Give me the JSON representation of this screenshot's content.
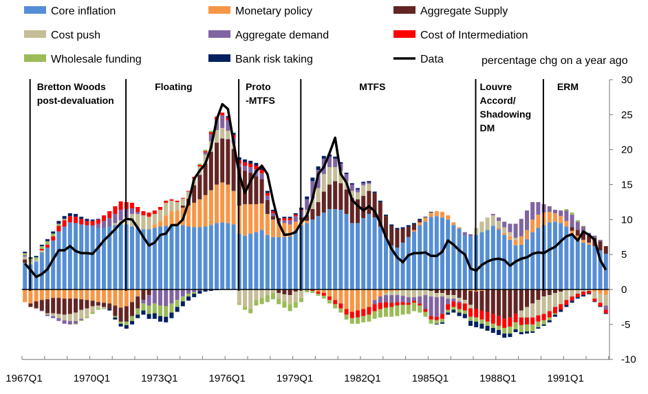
{
  "chart_data": {
    "type": "bar",
    "subtype": "stacked bar with line",
    "unit_note": "percentage chg on a year ago",
    "x_start": "1967Q1",
    "x_tick_labels": [
      "1967Q1",
      "1970Q1",
      "1973Q1",
      "1976Q1",
      "1979Q1",
      "1982Q1",
      "1985Q1",
      "1988Q1",
      "1991Q1"
    ],
    "ylim": [
      -10,
      30
    ],
    "y_ticks": [
      -10,
      -5,
      0,
      5,
      10,
      15,
      20,
      25,
      30
    ],
    "y_axis_side": "right",
    "legend_placement": "top",
    "regimes": [
      {
        "label_lines": [
          "Bretton Woods",
          "post-devaluation"
        ],
        "start": "1967Q2"
      },
      {
        "label_lines": [
          "Floating"
        ],
        "start": "1971Q3"
      },
      {
        "label_lines": [
          "Proto",
          "-MTFS"
        ],
        "start": "1976Q3"
      },
      {
        "label_lines": [
          "MTFS"
        ],
        "start": "1979Q2"
      },
      {
        "label_lines": [
          "Louvre",
          "Accord/",
          "Shadowing",
          "DM"
        ],
        "start": "1987Q1"
      },
      {
        "label_lines": [
          "ERM"
        ],
        "start": "1990Q1"
      }
    ],
    "series": [
      {
        "name": "Core inflation",
        "color": "#558ED5",
        "values": [
          3.8,
          3.6,
          4.0,
          5.3,
          6.0,
          7.0,
          8.3,
          9.0,
          9.6,
          9.5,
          9.3,
          9.2,
          9.0,
          8.8,
          8.8,
          9.0,
          9.2,
          9.4,
          9.3,
          9.0,
          8.8,
          8.6,
          8.6,
          8.8,
          9.0,
          9.1,
          9.2,
          9.1,
          9.2,
          9.0,
          8.9,
          8.9,
          9.0,
          9.2,
          9.5,
          9.6,
          9.5,
          9.3,
          8.0,
          7.7,
          8.0,
          8.2,
          8.5,
          7.8,
          7.5,
          7.5,
          7.5,
          7.6,
          8.5,
          9.2,
          9.5,
          10.0,
          10.5,
          11.0,
          11.5,
          11.5,
          11.4,
          10.8,
          9.5,
          9.5,
          10.2,
          10.8,
          10.3,
          9.0,
          7.5,
          6.3,
          6.0,
          6.7,
          7.5,
          8.3,
          9.2,
          9.7,
          10.4,
          10.5,
          10.3,
          10.0,
          9.2,
          8.7,
          7.7,
          7.6,
          7.8,
          8.2,
          8.5,
          9.1,
          8.6,
          7.8,
          7.1,
          6.3,
          6.4,
          7.2,
          8.2,
          8.8,
          9.2,
          9.6,
          9.7,
          9.5,
          9.0,
          7.8,
          7.2,
          6.7,
          6.4,
          6.2,
          5.6,
          5.1
        ]
      },
      {
        "name": "Monetary policy",
        "color": "#F79646",
        "values": [
          -1.8,
          -2.0,
          -1.7,
          -1.5,
          -1.4,
          -1.2,
          -1.2,
          -1.3,
          -1.3,
          -1.3,
          -1.4,
          -1.5,
          -1.6,
          -1.8,
          -1.9,
          -2.0,
          -2.3,
          -2.6,
          -2.4,
          -1.8,
          -1.0,
          0,
          0,
          0.5,
          0.8,
          1.5,
          2.0,
          2.2,
          2.5,
          3.0,
          3.5,
          4.0,
          4.5,
          5.0,
          5.5,
          5.7,
          5.5,
          4.8,
          4.0,
          4.5,
          4.2,
          4.0,
          3.8,
          3.0,
          2.5,
          2.0,
          2.0,
          1.7,
          1.2,
          0.8,
          0.3,
          0,
          -0.3,
          -0.5,
          -1.0,
          -1.5,
          -2.0,
          -2.8,
          -3.2,
          -3.0,
          -2.8,
          -2.5,
          -1.5,
          -1.0,
          -0.5,
          -0.3,
          -0.2,
          -0.1,
          -0.1,
          0.2,
          0.4,
          0.6,
          0.6,
          0.7,
          0.8,
          0.6,
          0.4,
          0.2,
          0,
          -0.2,
          -0.3,
          -0.2,
          0,
          0,
          0.2,
          0.3,
          0.5,
          0.8,
          1.2,
          1.3,
          1.8,
          1.9,
          1.8,
          1.5,
          1.2,
          1.0,
          0.8,
          0.6,
          0.5,
          0.4,
          0.3,
          -0.3,
          -0.6,
          -0.8
        ]
      },
      {
        "name": "Aggregate Supply",
        "color": "#632523",
        "values": [
          0.5,
          -0.5,
          -1.0,
          -1.5,
          -2.0,
          -2.2,
          -2.3,
          -2.3,
          -2.2,
          -2.0,
          -1.5,
          -1.2,
          -0.8,
          -0.5,
          -0.6,
          -0.8,
          -1.5,
          -2.0,
          -2.2,
          -2.0,
          -1.7,
          -1.5,
          -0.8,
          0,
          0,
          0,
          0,
          0,
          0.3,
          1.0,
          2.5,
          3.5,
          4.5,
          5.5,
          6.0,
          6.3,
          6.5,
          6.0,
          5.5,
          4.8,
          4.5,
          4.0,
          3.5,
          2.0,
          0.5,
          -0.5,
          -0.7,
          -0.8,
          -0.3,
          0.3,
          0.8,
          1.5,
          2.0,
          3.0,
          3.5,
          4.0,
          3.8,
          3.5,
          3.6,
          3.4,
          3.2,
          3.3,
          3.5,
          3.5,
          3.0,
          2.8,
          2.6,
          2.0,
          1.5,
          0.8,
          0.3,
          0,
          -0.2,
          -0.5,
          -0.5,
          -0.8,
          -0.8,
          -1.2,
          -1.5,
          -2.0,
          -2.5,
          -2.8,
          -3.2,
          -3.5,
          -3.8,
          -4.2,
          -4.0,
          -3.5,
          -3.0,
          -2.5,
          -2.0,
          -1.5,
          -1.0,
          -0.8,
          -0.5,
          -0.3,
          0,
          0.5,
          0.8,
          0.9,
          1.0,
          1.2,
          1.3,
          1.1
        ]
      },
      {
        "name": "Cost push",
        "color": "#C4BD97",
        "values": [
          0.4,
          0.4,
          0.3,
          0.3,
          -0.2,
          -0.4,
          -0.6,
          -0.8,
          -1.0,
          -1.2,
          -1.3,
          -1.2,
          -0.8,
          -0.4,
          -0.2,
          0,
          0.3,
          0.5,
          1.0,
          1.8,
          2.0,
          2.0,
          1.8,
          1.5,
          1.6,
          1.8,
          1.5,
          1.2,
          1.0,
          1.0,
          1.0,
          1.2,
          1.3,
          1.5,
          1.8,
          1.5,
          1.2,
          0.8,
          -2.0,
          -2.5,
          -2.8,
          -1.5,
          -1.2,
          -0.8,
          -0.5,
          -0.8,
          -1.0,
          -1.3,
          -1.5,
          -1.2,
          0.8,
          1.5,
          2.0,
          2.5,
          2.5,
          2.0,
          1.8,
          1.2,
          1.0,
          1.0,
          1.5,
          1.0,
          0,
          0,
          -0.3,
          -0.5,
          -0.6,
          -0.8,
          -1.0,
          -1.1,
          -1.0,
          -0.8,
          -0.8,
          -0.6,
          -0.5,
          -0.5,
          -0.5,
          -0.5,
          -0.5,
          -0.5,
          1.0,
          1.5,
          1.8,
          1.5,
          1.0,
          0.8,
          0.6,
          0.3,
          -1.0,
          -1.5,
          -2.0,
          -2.2,
          -2.5,
          -2.3,
          -2.0,
          -1.8,
          -1.5,
          -1.0,
          -0.6,
          -0.3,
          -0.2,
          -1.0,
          -1.3,
          -1.5
        ]
      },
      {
        "name": "Aggregate demand",
        "color": "#8064A2",
        "values": [
          0.2,
          0.1,
          0,
          -0.1,
          -0.2,
          -0.3,
          -0.4,
          -0.5,
          -0.5,
          -0.4,
          -0.2,
          0,
          0.2,
          0.6,
          1.0,
          1.2,
          1.3,
          1.5,
          1.2,
          0.8,
          0.3,
          -0.5,
          -1.5,
          -2.0,
          -2.3,
          -2.4,
          -2.0,
          -1.5,
          -1.0,
          -0.6,
          -0.4,
          -0.2,
          0.3,
          1.0,
          1.5,
          1.8,
          1.5,
          0.8,
          0.5,
          0.7,
          0.8,
          1.0,
          0.8,
          0.6,
          0.4,
          0.3,
          0.4,
          0.6,
          0.8,
          1.0,
          1.5,
          2.5,
          2.6,
          2.2,
          1.5,
          1.2,
          1.0,
          1.0,
          0.9,
          0.4,
          0.3,
          0.2,
          -0.6,
          -0.9,
          -1.0,
          -1.1,
          -1.0,
          -0.9,
          -0.8,
          -0.5,
          -1.0,
          -2.0,
          -2.8,
          -2.8,
          -2.5,
          -0.8,
          -0.4,
          -0.2,
          0.5,
          0.3,
          0,
          0,
          0,
          0.2,
          0.5,
          0.8,
          1.2,
          2.0,
          2.5,
          2.8,
          2.5,
          1.8,
          1.2,
          0.8,
          0.5,
          0.8,
          1.5,
          1.8,
          1.2,
          1.0,
          0.4,
          0.3,
          0.2,
          -0.6
        ]
      },
      {
        "name": "Cost of Intermediation",
        "color": "#FF0000",
        "values": [
          0,
          0,
          0,
          0.2,
          0.4,
          0.6,
          0.8,
          0.9,
          0.9,
          0.9,
          0.8,
          0.6,
          0.6,
          0.6,
          0.8,
          1.0,
          1.1,
          1.2,
          1.0,
          0.8,
          0.7,
          0.6,
          0.6,
          0.5,
          0.4,
          0.3,
          0.2,
          0.2,
          0.1,
          0.1,
          0.2,
          0.2,
          0.2,
          0.3,
          0.4,
          0.4,
          0.4,
          0.4,
          0.5,
          0.5,
          0.5,
          0.5,
          0.5,
          0.4,
          0.3,
          0.2,
          0.3,
          0.3,
          0.2,
          0.1,
          0,
          -0.2,
          -0.3,
          -0.4,
          -0.5,
          -0.6,
          -0.7,
          -0.8,
          -0.9,
          -1.0,
          -1.0,
          -1.1,
          -1.0,
          -0.9,
          -0.8,
          -0.6,
          -0.5,
          -0.4,
          -0.3,
          -0.3,
          -0.3,
          -0.4,
          -0.5,
          -0.5,
          -0.7,
          -0.8,
          -0.8,
          -0.9,
          -1.0,
          -1.2,
          -1.2,
          -1.3,
          -1.4,
          -1.4,
          -1.4,
          -1.3,
          -1.3,
          -1.2,
          -1.1,
          -1.0,
          -1.0,
          -0.9,
          -0.9,
          -0.9,
          -0.9,
          -0.8,
          -0.7,
          -0.6,
          -0.5,
          -0.5,
          -0.4,
          -0.4,
          -0.5,
          -0.5
        ]
      },
      {
        "name": "Wholesale funding",
        "color": "#9BBB59",
        "values": [
          0.3,
          0.3,
          0.3,
          0.4,
          0.5,
          0.4,
          0.3,
          0.2,
          0,
          -0.1,
          -0.1,
          -0.2,
          -0.3,
          -0.2,
          -0.1,
          0,
          -0.2,
          -0.3,
          -0.5,
          -0.7,
          -0.9,
          -1.0,
          -1.2,
          -1.4,
          -1.5,
          -1.5,
          -1.3,
          -1.0,
          -0.7,
          -0.4,
          -0.2,
          0.2,
          0.2,
          0.2,
          0.1,
          0,
          0,
          0,
          -0.2,
          -0.4,
          -0.6,
          -0.8,
          -0.9,
          -1.0,
          -0.9,
          -0.8,
          -0.9,
          -1.0,
          -0.8,
          -0.6,
          -0.4,
          -0.3,
          -0.3,
          -0.4,
          -0.5,
          -0.6,
          -0.6,
          -0.7,
          -0.8,
          -0.9,
          -0.9,
          -1.0,
          -1.1,
          -1.2,
          -1.3,
          -1.4,
          -1.5,
          -1.4,
          -1.3,
          -1.2,
          -1.0,
          -0.7,
          -0.6,
          -0.5,
          -0.5,
          -0.4,
          -0.4,
          -0.5,
          -0.5,
          -0.6,
          -0.6,
          -0.6,
          -0.6,
          -0.6,
          -0.6,
          -0.8,
          -1.0,
          -1.0,
          -1.0,
          -1.0,
          -1.0,
          -0.8,
          -0.6,
          -0.4,
          -0.2,
          0,
          0.2,
          0.3,
          0.2,
          0.1,
          0,
          0,
          0,
          0
        ]
      },
      {
        "name": "Bank risk taking",
        "color": "#002060",
        "values": [
          0.2,
          0.2,
          0.2,
          0.2,
          0.3,
          0.3,
          0.4,
          0.4,
          0.4,
          0.4,
          0.3,
          0.3,
          0.2,
          0.1,
          0,
          -0.2,
          -0.3,
          -0.4,
          -0.5,
          -0.5,
          -0.5,
          -0.6,
          -0.7,
          -0.8,
          -0.8,
          -0.8,
          -0.8,
          -0.7,
          -0.7,
          -0.6,
          -0.5,
          -0.4,
          -0.3,
          -0.2,
          -0.1,
          0,
          0.2,
          0.3,
          0.4,
          0.4,
          0.4,
          0.4,
          0.3,
          0.3,
          0.2,
          0.2,
          0.2,
          0.2,
          0.2,
          0.3,
          0.4,
          0.5,
          0.5,
          0.4,
          0.3,
          0.3,
          0.2,
          0.2,
          0.2,
          0.2,
          0.2,
          0.2,
          0.2,
          0.2,
          0.2,
          0.2,
          0.2,
          0.2,
          0.2,
          0.2,
          0.2,
          0.1,
          0.1,
          -0.1,
          -0.2,
          -0.3,
          -0.4,
          -0.5,
          -0.6,
          -0.7,
          -0.8,
          -0.7,
          -0.7,
          -0.7,
          -0.7,
          -0.6,
          -0.5,
          -0.4,
          -0.3,
          -0.3,
          -0.2,
          -0.2,
          -0.2,
          -0.3,
          -0.3,
          -0.3,
          -0.3,
          -0.3,
          -0.2,
          -0.2,
          -0.1,
          -0.1,
          -0.1,
          -0.1
        ]
      }
    ],
    "line": {
      "name": "Data",
      "color": "#000000",
      "values": [
        3.7,
        2.8,
        1.8,
        2.2,
        2.9,
        4.3,
        5.6,
        5.6,
        6.2,
        5.5,
        5.2,
        5.2,
        5.1,
        6.0,
        7.0,
        7.8,
        8.6,
        9.5,
        10.1,
        10.0,
        8.8,
        7.5,
        6.3,
        6.7,
        7.8,
        8.0,
        9.2,
        9.2,
        10.0,
        12.5,
        15.8,
        17.0,
        18.0,
        20.3,
        24.3,
        26.5,
        25.8,
        21.0,
        16.5,
        13.8,
        15.5,
        16.9,
        17.7,
        16.5,
        12.7,
        9.5,
        7.8,
        7.9,
        8.2,
        9.6,
        10.6,
        13.0,
        16.5,
        17.5,
        19.5,
        21.7,
        16.5,
        15.3,
        12.8,
        12.0,
        11.3,
        11.9,
        11.2,
        9.5,
        7.5,
        5.8,
        4.6,
        3.9,
        4.9,
        5.2,
        5.2,
        5.3,
        4.8,
        4.8,
        5.4,
        7.0,
        6.4,
        5.6,
        5.0,
        3.0,
        2.7,
        3.5,
        4.0,
        4.3,
        4.4,
        4.2,
        3.4,
        4.0,
        4.4,
        4.6,
        5.1,
        5.3,
        5.2,
        5.7,
        6.1,
        6.9,
        7.6,
        7.9,
        7.0,
        8.3,
        7.8,
        7.1,
        4.2,
        2.8
      ]
    }
  }
}
